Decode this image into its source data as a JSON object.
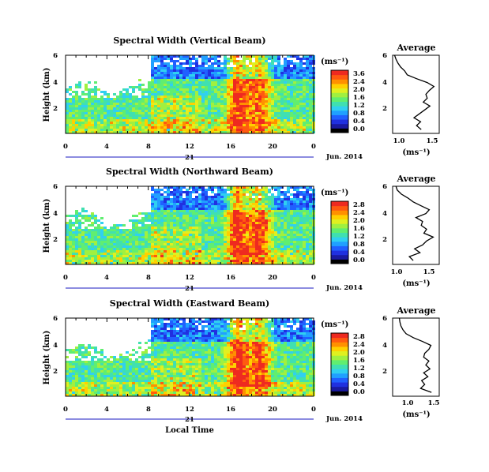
{
  "figure": {
    "x_axis_label": "Local Time",
    "day_label": "21",
    "date_label": "Jun. 2014",
    "y_axis_label": "Height (km)",
    "unit_label": "(ms⁻¹)",
    "average_title": "Average",
    "colormap": [
      "#000000",
      "#1a1aa0",
      "#2030e0",
      "#2060ff",
      "#20a0ff",
      "#30d0f0",
      "#40e0b0",
      "#60ee70",
      "#a0f040",
      "#e0f020",
      "#ffd000",
      "#ff9000",
      "#ff5a10",
      "#ee2a20"
    ]
  },
  "chart_data": [
    {
      "type": "heatmap",
      "title": "Spectral Width (Vertical Beam)",
      "xlabel": "",
      "ylabel": "Height (km)",
      "x_ticks": [
        "0",
        "4",
        "8",
        "12",
        "16",
        "20",
        "0"
      ],
      "xlim": [
        0,
        24
      ],
      "y_ticks": [
        "6",
        "4",
        "2"
      ],
      "ylim": [
        0,
        6
      ],
      "colorbar_ticks": [
        "3.6",
        "2.4",
        "2.0",
        "1.6",
        "1.2",
        "0.8",
        "0.4",
        "0.0"
      ],
      "avg_x_ticks": [
        "1.0",
        "1.5"
      ],
      "avg_xlim": [
        0.9,
        1.6
      ],
      "avg_profile": [
        [
          0.3,
          1.33
        ],
        [
          0.6,
          1.26
        ],
        [
          0.9,
          1.32
        ],
        [
          1.2,
          1.22
        ],
        [
          1.5,
          1.3
        ],
        [
          1.8,
          1.38
        ],
        [
          2.1,
          1.46
        ],
        [
          2.4,
          1.36
        ],
        [
          2.7,
          1.42
        ],
        [
          3.0,
          1.4
        ],
        [
          3.3,
          1.45
        ],
        [
          3.6,
          1.52
        ],
        [
          3.9,
          1.42
        ],
        [
          4.2,
          1.26
        ],
        [
          4.5,
          1.12
        ],
        [
          4.8,
          1.08
        ],
        [
          5.1,
          1.02
        ],
        [
          5.4,
          0.98
        ],
        [
          5.7,
          0.95
        ],
        [
          6.0,
          0.93
        ]
      ]
    },
    {
      "type": "heatmap",
      "title": "Spectral Width (Northward Beam)",
      "xlabel": "",
      "ylabel": "Height (km)",
      "x_ticks": [
        "0",
        "4",
        "8",
        "12",
        "16",
        "20",
        "0"
      ],
      "xlim": [
        0,
        24
      ],
      "y_ticks": [
        "6",
        "4",
        "2"
      ],
      "ylim": [
        0,
        6
      ],
      "colorbar_ticks": [
        "2.8",
        "2.4",
        "2.0",
        "1.6",
        "1.2",
        "0.8",
        "0.4",
        "0.0"
      ],
      "avg_x_ticks": [
        "1.0",
        "1.5"
      ],
      "avg_xlim": [
        0.95,
        1.65
      ],
      "avg_profile": [
        [
          0.3,
          1.26
        ],
        [
          0.6,
          1.2
        ],
        [
          0.9,
          1.36
        ],
        [
          1.2,
          1.28
        ],
        [
          1.5,
          1.4
        ],
        [
          1.8,
          1.46
        ],
        [
          2.1,
          1.56
        ],
        [
          2.4,
          1.42
        ],
        [
          2.7,
          1.46
        ],
        [
          3.0,
          1.38
        ],
        [
          3.3,
          1.4
        ],
        [
          3.6,
          1.3
        ],
        [
          3.9,
          1.45
        ],
        [
          4.2,
          1.5
        ],
        [
          4.5,
          1.38
        ],
        [
          4.8,
          1.26
        ],
        [
          5.1,
          1.18
        ],
        [
          5.4,
          1.08
        ],
        [
          5.7,
          1.02
        ],
        [
          6.0,
          1.0
        ]
      ]
    },
    {
      "type": "heatmap",
      "title": "Spectral Width (Eastward Beam)",
      "xlabel": "Local Time",
      "ylabel": "Height (km)",
      "x_ticks": [
        "0",
        "4",
        "8",
        "12",
        "16",
        "20",
        "0"
      ],
      "xlim": [
        0,
        24
      ],
      "y_ticks": [
        "6",
        "4",
        "2"
      ],
      "ylim": [
        0,
        6
      ],
      "colorbar_ticks": [
        "2.8",
        "2.4",
        "2.0",
        "1.6",
        "1.2",
        "0.8",
        "0.4",
        "0.0"
      ],
      "avg_x_ticks": [
        "1.0",
        "1.5"
      ],
      "avg_xlim": [
        0.8,
        1.7
      ],
      "avg_profile": [
        [
          0.3,
          1.55
        ],
        [
          0.6,
          1.34
        ],
        [
          0.9,
          1.42
        ],
        [
          1.2,
          1.36
        ],
        [
          1.5,
          1.48
        ],
        [
          1.8,
          1.4
        ],
        [
          2.1,
          1.52
        ],
        [
          2.4,
          1.44
        ],
        [
          2.7,
          1.5
        ],
        [
          3.0,
          1.4
        ],
        [
          3.3,
          1.42
        ],
        [
          3.6,
          1.5
        ],
        [
          3.9,
          1.54
        ],
        [
          4.2,
          1.38
        ],
        [
          4.5,
          1.2
        ],
        [
          4.8,
          1.06
        ],
        [
          5.1,
          1.0
        ],
        [
          5.4,
          0.96
        ],
        [
          5.7,
          0.94
        ],
        [
          6.0,
          0.93
        ]
      ]
    }
  ]
}
